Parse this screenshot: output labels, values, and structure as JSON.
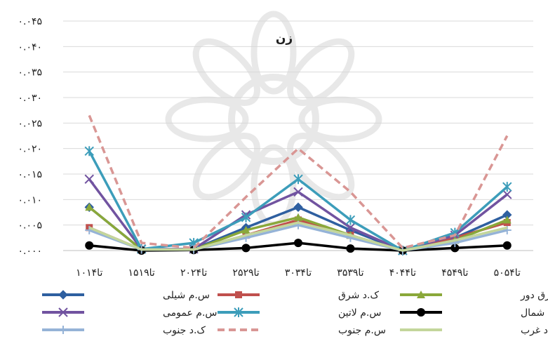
{
  "chart_data": {
    "type": "line",
    "title": "زن",
    "categories": [
      "۱۰تا۱۴",
      "۱۵تا۱۹",
      "۲۰تا۲۴",
      "۲۵تا۲۹",
      "۳۰تا۳۴",
      "۳۵تا۳۹",
      "۴۰تا۴۴",
      "۴۵تا۴۹",
      "۵۰تا۵۴"
    ],
    "ylim": [
      0,
      0.045
    ],
    "yticks": [
      0,
      0.005,
      0.01,
      0.015,
      0.02,
      0.025,
      0.03,
      0.035,
      0.04,
      0.045
    ],
    "ytick_labels": [
      "۰.۰۰۰",
      "۰.۰۰۵",
      "۰.۰۱۰",
      "۰.۰۱۵",
      "۰.۰۲۰",
      "۰.۰۲۵",
      "۰.۰۳۰",
      "۰.۰۳۵",
      "۰.۰۴۰",
      "۰.۰۴۵"
    ],
    "grid": true,
    "legend_position": "bottom",
    "series": [
      {
        "name": "س.م شیلی",
        "color": "#2e5fa0",
        "marker": "diamond",
        "dash": false,
        "values": [
          0.0085,
          0.0002,
          0.0003,
          0.0045,
          0.0085,
          0.004,
          0.0,
          0.0025,
          0.007
        ]
      },
      {
        "name": "ک.د شرق",
        "color": "#c0504d",
        "marker": "square",
        "dash": false,
        "values": [
          0.0045,
          0.0002,
          0.0002,
          0.003,
          0.006,
          0.003,
          0.0,
          0.0025,
          0.0055
        ]
      },
      {
        "name": "س.م آسیای شرق دور",
        "color": "#8aa83a",
        "marker": "triangle",
        "dash": false,
        "values": [
          0.0085,
          0.0002,
          0.0002,
          0.004,
          0.0065,
          0.003,
          0.0,
          0.002,
          0.006
        ]
      },
      {
        "name": "س.م عمومی",
        "color": "#7153a0",
        "marker": "x",
        "dash": false,
        "values": [
          0.014,
          0.0003,
          0.0003,
          0.007,
          0.0115,
          0.0045,
          0.0,
          0.003,
          0.011
        ]
      },
      {
        "name": "س.م لاتین",
        "color": "#3c9dba",
        "marker": "star",
        "dash": false,
        "values": [
          0.0195,
          0.0003,
          0.0015,
          0.0065,
          0.014,
          0.006,
          0.0,
          0.0035,
          0.0125
        ]
      },
      {
        "name": "ک.د شمال",
        "color": "#000000",
        "marker": "circle",
        "dash": false,
        "values": [
          0.001,
          0.0,
          0.0001,
          0.0005,
          0.0015,
          0.0004,
          0.0,
          0.0005,
          0.001
        ]
      },
      {
        "name": "ک.د جنوب",
        "color": "#95b3d7",
        "marker": "plus",
        "dash": false,
        "values": [
          0.004,
          0.0002,
          0.0002,
          0.0025,
          0.005,
          0.0025,
          0.0,
          0.0015,
          0.004
        ]
      },
      {
        "name": "س.م جنوب",
        "color": "#d99694",
        "marker": "none",
        "dash": true,
        "values": [
          0.0265,
          0.0015,
          0.0005,
          0.0105,
          0.02,
          0.0115,
          0.0005,
          0.003,
          0.0225
        ]
      },
      {
        "name": "ک.د غرب",
        "color": "#c3d69b",
        "marker": "none",
        "dash": false,
        "values": [
          0.0045,
          0.0002,
          0.0002,
          0.003,
          0.0055,
          0.003,
          0.0,
          0.002,
          0.0045
        ]
      }
    ]
  }
}
